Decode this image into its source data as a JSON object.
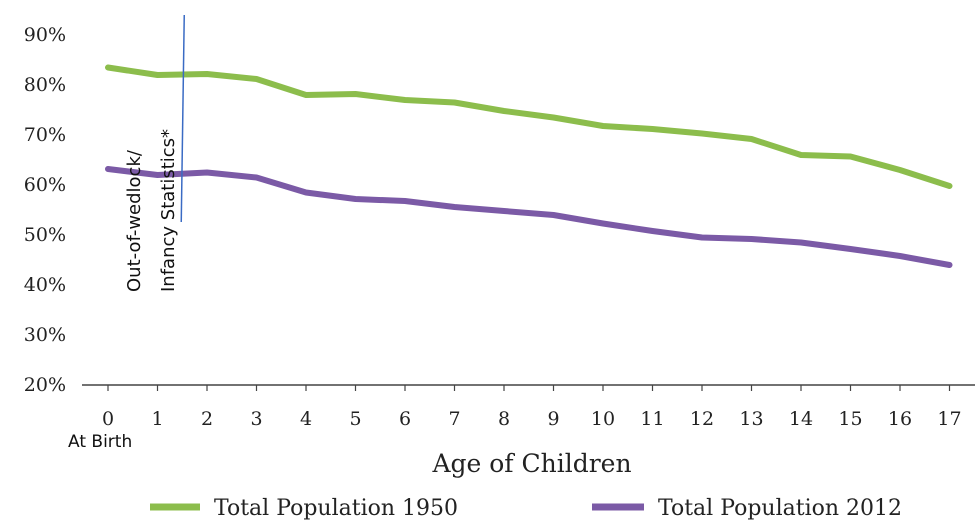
{
  "chart_data": {
    "type": "line",
    "x": [
      0,
      1,
      2,
      3,
      4,
      5,
      6,
      7,
      8,
      9,
      10,
      11,
      12,
      13,
      14,
      15,
      16,
      17
    ],
    "x_tick_labels": [
      "0",
      "1",
      "2",
      "3",
      "4",
      "5",
      "6",
      "7",
      "8",
      "9",
      "10",
      "11",
      "12",
      "13",
      "14",
      "15",
      "16",
      "17"
    ],
    "x_sublabel": "At Birth",
    "xlabel": "Age of Children",
    "ylabel": "",
    "ylim": [
      20,
      90
    ],
    "y_tick_labels": [
      "20%",
      "30%",
      "40%",
      "50%",
      "60%",
      "70%",
      "80%",
      "90%"
    ],
    "y_ticks": [
      20,
      30,
      40,
      50,
      60,
      70,
      80,
      90
    ],
    "grid": false,
    "legend_position": "bottom",
    "series": [
      {
        "name": "Total Population 1950",
        "color": "#8cbd4c",
        "values": [
          83.5,
          82,
          82.2,
          81.2,
          78,
          78.2,
          77,
          76.5,
          74.8,
          73.5,
          71.8,
          71.2,
          70.3,
          69.2,
          66,
          65.7,
          63,
          59.8
        ]
      },
      {
        "name": "Total Population 2012",
        "color": "#7b5aa6",
        "values": [
          63.2,
          62,
          62.5,
          61.5,
          58.5,
          57.2,
          56.8,
          55.6,
          54.8,
          54,
          52.3,
          50.8,
          49.5,
          49.2,
          48.5,
          47.2,
          45.8,
          44
        ]
      }
    ],
    "annotation": {
      "text_lines": [
        "Out-of-wedlock/",
        "Infancy Statistics*"
      ],
      "x_position": 1.5,
      "line_color": "#3a6bc4"
    }
  }
}
